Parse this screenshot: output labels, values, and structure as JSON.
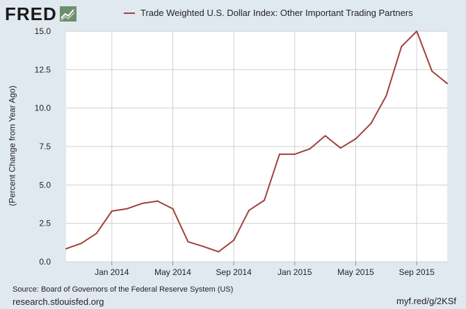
{
  "header": {
    "logo_text": "FRED",
    "logo_icon": "fred-chart-logo-icon"
  },
  "legend": {
    "label": "Trade Weighted U.S. Dollar Index: Other Important Trading Partners",
    "color": "#a0403a"
  },
  "footer": {
    "source": "Source: Board of Governors of the Federal Reserve System (US)",
    "site": "research.stlouisfed.org",
    "short_url": "myf.red/g/2KSf"
  },
  "chart_data": {
    "type": "line",
    "ylabel": "(Percent Change from Year Ago)",
    "xlabel": "",
    "ylim": [
      0,
      15
    ],
    "yticks": [
      "0.0",
      "2.5",
      "5.0",
      "7.5",
      "10.0",
      "12.5",
      "15.0"
    ],
    "xticks": [
      "Jan 2014",
      "May 2014",
      "Sep 2014",
      "Jan 2015",
      "May 2015",
      "Sep 2015"
    ],
    "grid": true,
    "series": [
      {
        "name": "Trade Weighted U.S. Dollar Index: Other Important Trading Partners",
        "color": "#a0403a",
        "x": [
          "2013-10",
          "2013-11",
          "2013-12",
          "2014-01",
          "2014-02",
          "2014-03",
          "2014-04",
          "2014-05",
          "2014-06",
          "2014-07",
          "2014-08",
          "2014-09",
          "2014-10",
          "2014-11",
          "2014-12",
          "2015-01",
          "2015-02",
          "2015-03",
          "2015-04",
          "2015-05",
          "2015-06",
          "2015-07",
          "2015-08",
          "2015-09",
          "2015-10",
          "2015-11"
        ],
        "values": [
          0.85,
          1.2,
          1.85,
          3.3,
          3.45,
          3.8,
          3.95,
          3.45,
          1.3,
          1.0,
          0.65,
          1.4,
          3.35,
          4.0,
          7.0,
          7.0,
          7.35,
          8.2,
          7.4,
          8.0,
          9.0,
          10.8,
          14.0,
          15.0,
          12.4,
          11.6
        ]
      }
    ]
  }
}
